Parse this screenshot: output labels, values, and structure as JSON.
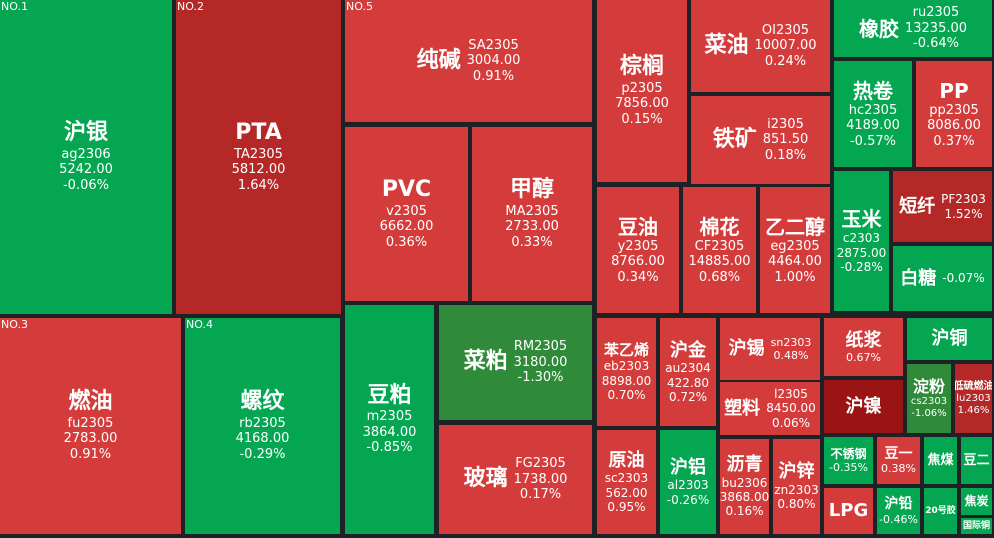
{
  "colors": {
    "up": "#d43c3c",
    "up_strong": "#b52828",
    "up_darkest": "#9b1414",
    "down": "#04a651",
    "down_strong": "#2f8a3a",
    "background": "#1e2226"
  },
  "tiles": [
    {
      "name": "沪银",
      "code": "ag2306",
      "price": "5242.00",
      "change": "-0.06%",
      "rank": "NO.1",
      "color": "down"
    },
    {
      "name": "PTA",
      "code": "TA2305",
      "price": "5812.00",
      "change": "1.64%",
      "rank": "NO.2",
      "color": "up_strong"
    },
    {
      "name": "纯碱",
      "code": "SA2305",
      "price": "3004.00",
      "change": "0.91%",
      "rank": "NO.5",
      "color": "up"
    },
    {
      "name": "PVC",
      "code": "v2305",
      "price": "6662.00",
      "change": "0.36%",
      "color": "up"
    },
    {
      "name": "甲醇",
      "code": "MA2305",
      "price": "2733.00",
      "change": "0.33%",
      "color": "up"
    },
    {
      "name": "燃油",
      "code": "fu2305",
      "price": "2783.00",
      "change": "0.91%",
      "rank": "NO.3",
      "color": "up"
    },
    {
      "name": "螺纹",
      "code": "rb2305",
      "price": "4168.00",
      "change": "-0.29%",
      "rank": "NO.4",
      "color": "down"
    },
    {
      "name": "豆粕",
      "code": "m2305",
      "price": "3864.00",
      "change": "-0.85%",
      "color": "down"
    },
    {
      "name": "菜粕",
      "code": "RM2305",
      "price": "3180.00",
      "change": "-1.30%",
      "color": "down_strong"
    },
    {
      "name": "玻璃",
      "code": "FG2305",
      "price": "1738.00",
      "change": "0.17%",
      "color": "up"
    },
    {
      "name": "棕榈",
      "code": "p2305",
      "price": "7856.00",
      "change": "0.15%",
      "color": "up"
    },
    {
      "name": "菜油",
      "code": "OI2305",
      "price": "10007.00",
      "change": "0.24%",
      "color": "up"
    },
    {
      "name": "铁矿",
      "code": "i2305",
      "price": "851.50",
      "change": "0.18%",
      "color": "up"
    },
    {
      "name": "橡胶",
      "code": "ru2305",
      "price": "13235.00",
      "change": "-0.64%",
      "color": "down"
    },
    {
      "name": "热卷",
      "code": "hc2305",
      "price": "4189.00",
      "change": "-0.57%",
      "color": "down"
    },
    {
      "name": "PP",
      "code": "pp2305",
      "price": "8086.00",
      "change": "0.37%",
      "color": "up"
    },
    {
      "name": "豆油",
      "code": "y2305",
      "price": "8766.00",
      "change": "0.34%",
      "color": "up"
    },
    {
      "name": "棉花",
      "code": "CF2305",
      "price": "14885.00",
      "change": "0.68%",
      "color": "up"
    },
    {
      "name": "乙二醇",
      "code": "eg2305",
      "price": "4464.00",
      "change": "1.00%",
      "color": "up"
    },
    {
      "name": "玉米",
      "code": "c2303",
      "price": "2875.00",
      "change": "-0.28%",
      "color": "down"
    },
    {
      "name": "短纤",
      "code": "PF2303",
      "change": "1.52%",
      "color": "up_strong"
    },
    {
      "name": "白糖",
      "change": "-0.07%",
      "color": "down"
    },
    {
      "name": "苯乙烯",
      "code": "eb2303",
      "price": "8898.00",
      "change": "0.70%",
      "color": "up"
    },
    {
      "name": "沪金",
      "code": "au2304",
      "price": "422.80",
      "change": "0.72%",
      "color": "up"
    },
    {
      "name": "沪锡",
      "code": "sn2303",
      "change": "0.48%",
      "color": "up"
    },
    {
      "name": "纸浆",
      "change": "0.67%",
      "color": "up"
    },
    {
      "name": "沪铜",
      "color": "down"
    },
    {
      "name": "塑料",
      "code": "l2305",
      "price": "8450.00",
      "change": "0.06%",
      "color": "up"
    },
    {
      "name": "沪镍",
      "color": "up_darkest"
    },
    {
      "name": "淀粉",
      "code": "cs2303",
      "change": "-1.06%",
      "color": "down_strong"
    },
    {
      "name": "低硫燃油",
      "code": "lu2303",
      "change": "1.46%",
      "color": "up_strong"
    },
    {
      "name": "原油",
      "code": "sc2303",
      "price": "562.00",
      "change": "0.95%",
      "color": "up"
    },
    {
      "name": "沪铝",
      "code": "al2303",
      "change": "-0.26%",
      "color": "down"
    },
    {
      "name": "沥青",
      "code": "bu2306",
      "price": "3868.00",
      "change": "0.16%",
      "color": "up"
    },
    {
      "name": "沪锌",
      "code": "zn2303",
      "change": "0.80%",
      "color": "up"
    },
    {
      "name": "不锈钢",
      "change": "-0.35%",
      "color": "down"
    },
    {
      "name": "豆一",
      "change": "0.38%",
      "color": "up"
    },
    {
      "name": "焦煤",
      "color": "down"
    },
    {
      "name": "豆二",
      "color": "down"
    },
    {
      "name": "LPG",
      "color": "up"
    },
    {
      "name": "沪铅",
      "change": "-0.46%",
      "color": "down"
    },
    {
      "name": "20号胶",
      "color": "down"
    },
    {
      "name": "焦炭",
      "color": "down"
    },
    {
      "name": "国际铜",
      "color": "down"
    }
  ]
}
